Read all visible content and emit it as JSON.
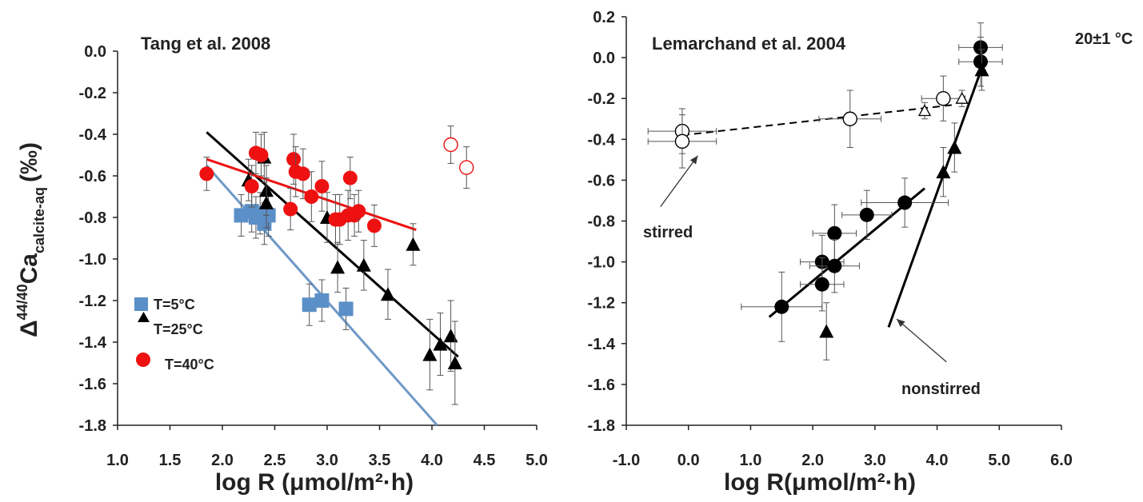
{
  "colors": {
    "blue": "#5b8fc7",
    "line_blue": "#6f98c7",
    "black": "#000000",
    "red": "#ee1111",
    "axis": "#222222",
    "errorbar": "#555555"
  },
  "chart_data": [
    {
      "type": "scatter",
      "title": "Tang et al. 2008",
      "xlabel": "log R (μmol/m²·h)",
      "ylabel": {
        "main": "Δ",
        "sup": "44/40",
        "ca": "Ca",
        "sub": "calcite-aq",
        "unit": "(‰)"
      },
      "xlim": [
        1.0,
        5.0
      ],
      "ylim": [
        -1.8,
        0.0
      ],
      "xticks": [
        "1.0",
        "1.5",
        "2.0",
        "2.5",
        "3.0",
        "3.5",
        "4.0",
        "4.5",
        "5.0"
      ],
      "yticks": [
        "0.0",
        "-0.2",
        "-0.4",
        "-0.6",
        "-0.8",
        "-1.0",
        "-1.2",
        "-1.4",
        "-1.6",
        "-1.8"
      ],
      "grid": false,
      "legend_position": "lower-left",
      "series": [
        {
          "name": "T=5°C",
          "marker": "square",
          "color": "#5b8fc7",
          "points": [
            {
              "x": 2.18,
              "y": -0.79,
              "ey": 0.1
            },
            {
              "x": 2.28,
              "y": -0.77,
              "ey": 0.1
            },
            {
              "x": 2.32,
              "y": -0.8,
              "ey": 0.1
            },
            {
              "x": 2.36,
              "y": -0.78,
              "ey": 0.1
            },
            {
              "x": 2.4,
              "y": -0.83,
              "ey": 0.1
            },
            {
              "x": 2.44,
              "y": -0.79,
              "ey": 0.1
            },
            {
              "x": 2.83,
              "y": -1.22,
              "ey": 0.1
            },
            {
              "x": 2.95,
              "y": -1.2,
              "ey": 0.1
            },
            {
              "x": 3.18,
              "y": -1.24,
              "ey": 0.1
            }
          ],
          "fit": {
            "x": [
              1.85,
              4.05
            ],
            "y": [
              -0.55,
              -1.8
            ]
          }
        },
        {
          "name": "T=25°C",
          "marker": "triangle",
          "color": "#000000",
          "points": [
            {
              "x": 2.25,
              "y": -0.62,
              "ey": 0.1
            },
            {
              "x": 2.4,
              "y": -0.51,
              "ey": 0.12
            },
            {
              "x": 2.42,
              "y": -0.67,
              "ey": 0.12
            },
            {
              "x": 2.42,
              "y": -0.73,
              "ey": 0.12
            },
            {
              "x": 3.0,
              "y": -0.8,
              "ey": 0.12
            },
            {
              "x": 3.1,
              "y": -1.04,
              "ey": 0.12
            },
            {
              "x": 3.35,
              "y": -1.03,
              "ey": 0.12
            },
            {
              "x": 3.58,
              "y": -1.17,
              "ey": 0.12
            },
            {
              "x": 3.82,
              "y": -0.93,
              "ey": 0.1
            },
            {
              "x": 3.98,
              "y": -1.46,
              "ey": 0.17
            },
            {
              "x": 4.08,
              "y": -1.41,
              "ey": 0.15
            },
            {
              "x": 4.18,
              "y": -1.37,
              "ey": 0.17
            },
            {
              "x": 4.22,
              "y": -1.5,
              "ey": 0.2
            }
          ],
          "fit": {
            "x": [
              1.85,
              4.25
            ],
            "y": [
              -0.39,
              -1.47
            ]
          }
        },
        {
          "name": "T=40°C",
          "marker": "circle",
          "color": "#ee1111",
          "points": [
            {
              "x": 1.85,
              "y": -0.59,
              "ey": 0.08
            },
            {
              "x": 2.28,
              "y": -0.65,
              "ey": 0.1
            },
            {
              "x": 2.32,
              "y": -0.49,
              "ey": 0.1
            },
            {
              "x": 2.37,
              "y": -0.5,
              "ey": 0.1
            },
            {
              "x": 2.65,
              "y": -0.76,
              "ey": 0.1
            },
            {
              "x": 2.68,
              "y": -0.52,
              "ey": 0.12
            },
            {
              "x": 2.7,
              "y": -0.58,
              "ey": 0.12
            },
            {
              "x": 2.77,
              "y": -0.59,
              "ey": 0.12
            },
            {
              "x": 2.85,
              "y": -0.7,
              "ey": 0.12
            },
            {
              "x": 2.95,
              "y": -0.65,
              "ey": 0.12
            },
            {
              "x": 3.08,
              "y": -0.81,
              "ey": 0.12
            },
            {
              "x": 3.12,
              "y": -0.81,
              "ey": 0.12
            },
            {
              "x": 3.2,
              "y": -0.79,
              "ey": 0.12
            },
            {
              "x": 3.22,
              "y": -0.61,
              "ey": 0.1
            },
            {
              "x": 3.26,
              "y": -0.79,
              "ey": 0.1
            },
            {
              "x": 3.3,
              "y": -0.77,
              "ey": 0.1
            },
            {
              "x": 3.45,
              "y": -0.84,
              "ey": 0.1
            }
          ],
          "fit": {
            "x": [
              1.85,
              3.85
            ],
            "y": [
              -0.52,
              -0.86
            ]
          }
        },
        {
          "name": "",
          "marker": "open-circle",
          "color": "#ee1111",
          "points": [
            {
              "x": 4.18,
              "y": -0.45,
              "ey": 0.09
            },
            {
              "x": 4.33,
              "y": -0.56,
              "ey": 0.1
            }
          ]
        }
      ]
    },
    {
      "type": "scatter",
      "title": "Lemarchand et al. 2004",
      "annotation_temp": "20±1 °C",
      "xlabel": "log R(μmol/m²·h)",
      "xlim": [
        -1.0,
        6.0
      ],
      "ylim": [
        -1.8,
        0.2
      ],
      "xticks": [
        "-1.0",
        "0.0",
        "1.0",
        "2.0",
        "3.0",
        "4.0",
        "5.0",
        "6.0"
      ],
      "yticks": [
        "0.2",
        "0.0",
        "-0.2",
        "-0.4",
        "-0.6",
        "-0.8",
        "-1.0",
        "-1.2",
        "-1.4",
        "-1.6",
        "-1.8"
      ],
      "grid": false,
      "annotations": [
        {
          "text": "stirred",
          "arrow_from": [
            -0.45,
            -0.73
          ],
          "arrow_to": [
            0.15,
            -0.48
          ]
        },
        {
          "text": "nonstirred",
          "arrow_from": [
            4.15,
            -1.49
          ],
          "arrow_to": [
            3.35,
            -1.28
          ]
        }
      ],
      "series": [
        {
          "name": "",
          "marker": "circle",
          "color": "#000000",
          "points": [
            {
              "x": 1.5,
              "y": -1.22,
              "ex": 0.65,
              "ey": 0.17
            },
            {
              "x": 2.15,
              "y": -1.0,
              "ex": 0.35,
              "ey": 0.13
            },
            {
              "x": 2.15,
              "y": -1.11,
              "ex": 0.35,
              "ey": 0.13
            },
            {
              "x": 2.35,
              "y": -0.86,
              "ex": 0.35,
              "ey": 0.14
            },
            {
              "x": 2.35,
              "y": -1.02,
              "ex": 0.4,
              "ey": 0.13
            },
            {
              "x": 2.87,
              "y": -0.77,
              "ex": 0.4,
              "ey": 0.12
            },
            {
              "x": 3.48,
              "y": -0.71,
              "ex": 0.7,
              "ey": 0.12
            },
            {
              "x": 4.7,
              "y": 0.05,
              "ex": 0.35,
              "ey": 0.12
            },
            {
              "x": 4.7,
              "y": -0.02,
              "ex": 0.35,
              "ey": 0.12
            }
          ],
          "fit": {
            "x": [
              1.3,
              3.8
            ],
            "y": [
              -1.27,
              -0.64
            ]
          }
        },
        {
          "name": "",
          "marker": "triangle",
          "color": "#000000",
          "points": [
            {
              "x": 2.22,
              "y": -1.34,
              "ey": 0.14
            },
            {
              "x": 4.1,
              "y": -0.56,
              "ey": 0.12
            },
            {
              "x": 4.28,
              "y": -0.44,
              "ey": 0.12
            },
            {
              "x": 4.72,
              "y": -0.06,
              "ey": 0.1
            }
          ],
          "fit": {
            "x": [
              3.22,
              4.72
            ],
            "y": [
              -1.32,
              -0.05
            ]
          }
        },
        {
          "name": "",
          "marker": "open-circle",
          "color": "#000000",
          "points": [
            {
              "x": -0.1,
              "y": -0.36,
              "ex": 0.55,
              "ey": 0.11
            },
            {
              "x": -0.1,
              "y": -0.41,
              "ex": 0.55,
              "ey": 0.13
            },
            {
              "x": 2.6,
              "y": -0.3,
              "ex": 0.5,
              "ey": 0.14
            },
            {
              "x": 4.1,
              "y": -0.2,
              "ex": 0.35,
              "ey": 0.11
            }
          ],
          "fit": {
            "x": [
              -0.1,
              4.3
            ],
            "y": [
              -0.38,
              -0.23
            ],
            "dashed": true
          }
        },
        {
          "name": "",
          "marker": "open-triangle",
          "color": "#000000",
          "points": [
            {
              "x": 3.8,
              "y": -0.26,
              "ey": 0.04
            },
            {
              "x": 4.4,
              "y": -0.2,
              "ey": 0.04
            }
          ]
        }
      ]
    }
  ]
}
